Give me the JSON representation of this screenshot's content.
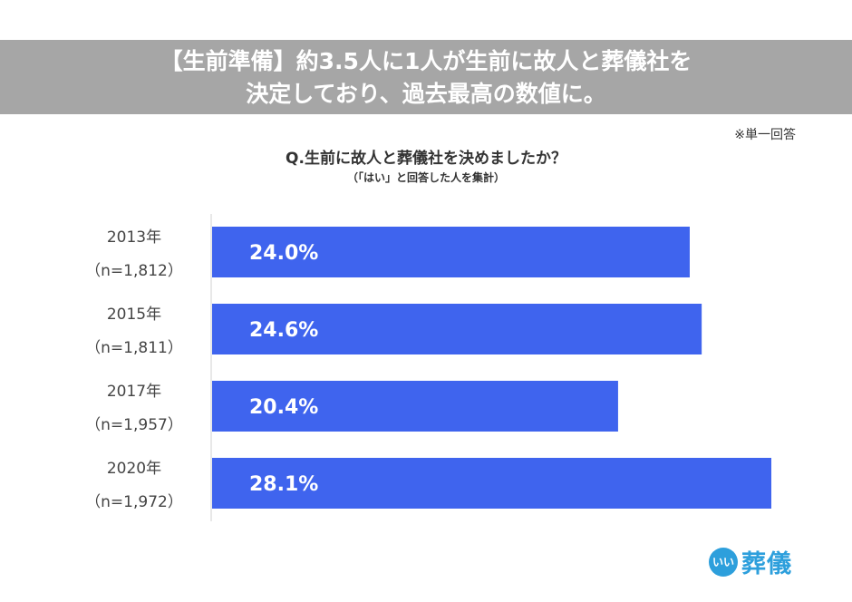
{
  "banner": {
    "line1": "【生前準備】約3.5人に1人が生前に故人と葬儀社を",
    "line2": "決定しており、過去最高の数値に。"
  },
  "note": "※単一回答",
  "chart_data": {
    "type": "bar",
    "orientation": "horizontal",
    "title": "Q.生前に故人と葬儀社を決めましたか？",
    "subtitle": "（「はい」と回答した人を集計）",
    "categories": [
      "2013年",
      "2015年",
      "2017年",
      "2020年"
    ],
    "category_notes": [
      "（n=1,812）",
      "（n=1,811）",
      "（n=1,957）",
      "（n=1,972）"
    ],
    "values": [
      24.0,
      24.6,
      20.4,
      28.1
    ],
    "value_labels": [
      "24.0%",
      "24.6%",
      "20.4%",
      "28.1%"
    ],
    "unit": "%",
    "xlim": [
      0,
      28.1
    ],
    "bar_color": "#3f64ee",
    "label_color": "#ffffff",
    "grid": false,
    "legend": "none"
  },
  "logo": {
    "mark": "いい",
    "text": "葬儀",
    "color": "#2d9fdc"
  }
}
